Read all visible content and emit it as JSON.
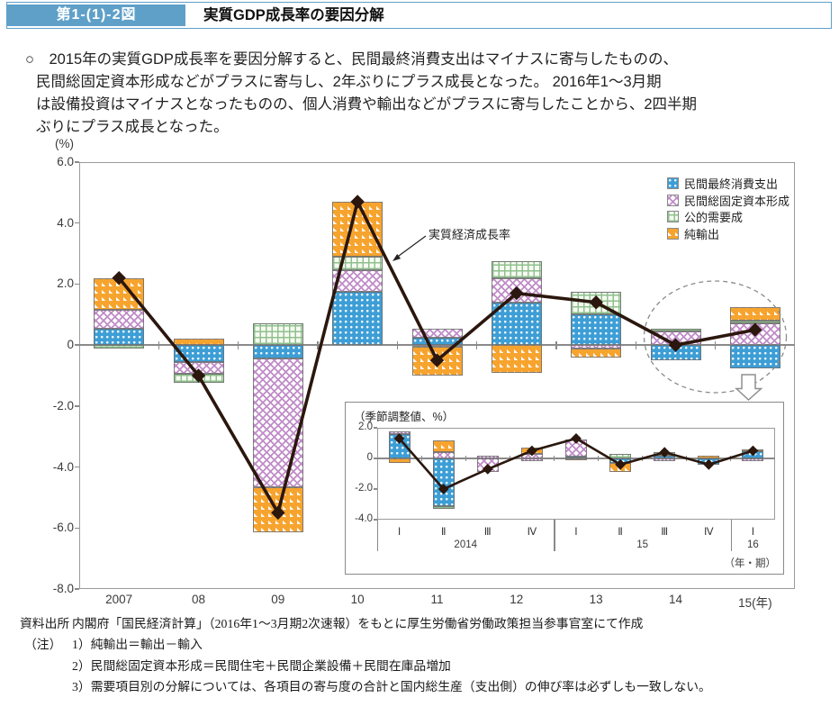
{
  "header": {
    "figure_label": "第1-(1)-2図",
    "title": "実質GDP成長率の要因分解"
  },
  "summary": {
    "lines": [
      "○　2015年の実質GDP成長率を要因分解すると、民間最終消費支出はマイナスに寄与したものの、",
      "民間総固定資本形成などがプラスに寄与し、2年ぶりにプラス成長となった。 2016年1～3月期",
      "は設備投資はマイナスとなったものの、個人消費や輸出などがプラスに寄与したことから、2四半期",
      "ぶりにプラス成長となった。"
    ]
  },
  "colors": {
    "blue": "#3D9ED6",
    "purple": "#C08CC8",
    "green": "#8FC08D",
    "orange": "#F7A42F",
    "line": "#2B170D",
    "header_blue": "#5FA0C9",
    "frame": "#9B9B9B",
    "ellipse": "#8A8A8A",
    "arrow_outline": "#8F8F8F"
  },
  "chart_data": [
    {
      "type": "bar",
      "subtype": "stacked-contribution-bars-with-line",
      "unit_label": "(%)",
      "ylim": [
        -8,
        6
      ],
      "ytick_labels": [
        "6.0",
        "4.0",
        "2.0",
        "0",
        "-2.0",
        "-4.0",
        "-6.0",
        "-8.0"
      ],
      "categories": [
        "2007",
        "08",
        "09",
        "10",
        "11",
        "12",
        "13",
        "14",
        "15(年)"
      ],
      "legend": [
        {
          "series": "blue",
          "label": "民間最終消費支出"
        },
        {
          "series": "purple",
          "label": "民間総固定資本形成"
        },
        {
          "series": "green",
          "label": "公的需要成"
        },
        {
          "series": "orange",
          "label": "純輸出"
        }
      ],
      "bars": [
        [
          [
            "blue",
            0.55
          ],
          [
            "purple",
            0.6
          ],
          [
            "orange",
            1.05
          ],
          [
            "green",
            -0.1
          ]
        ],
        [
          [
            "orange",
            0.2
          ],
          [
            "blue",
            -0.55
          ],
          [
            "purple",
            -0.4
          ],
          [
            "green",
            -0.3
          ]
        ],
        [
          [
            "green",
            0.7
          ],
          [
            "blue",
            -0.45
          ],
          [
            "purple",
            -4.2
          ],
          [
            "orange",
            -1.5
          ]
        ],
        [
          [
            "blue",
            1.75
          ],
          [
            "purple",
            0.7
          ],
          [
            "green",
            0.45
          ],
          [
            "orange",
            1.8
          ]
        ],
        [
          [
            "blue",
            0.25
          ],
          [
            "purple",
            0.3
          ],
          [
            "green",
            -0.05
          ],
          [
            "orange",
            -0.95
          ]
        ],
        [
          [
            "blue",
            1.4
          ],
          [
            "purple",
            0.8
          ],
          [
            "green",
            0.55
          ],
          [
            "orange",
            -0.9
          ]
        ],
        [
          [
            "blue",
            1.0
          ],
          [
            "green",
            0.75
          ],
          [
            "purple",
            -0.1
          ],
          [
            "orange",
            -0.3
          ]
        ],
        [
          [
            "purple",
            0.45
          ],
          [
            "green",
            0.1
          ],
          [
            "blue",
            -0.5
          ]
        ],
        [
          [
            "purple",
            0.7
          ],
          [
            "green",
            0.1
          ],
          [
            "orange",
            0.45
          ],
          [
            "blue",
            -0.75
          ]
        ]
      ],
      "line": {
        "label": "実質経済成長率",
        "values": [
          2.2,
          -1.0,
          -5.5,
          4.7,
          -0.5,
          1.7,
          1.4,
          0.0,
          0.5
        ]
      }
    },
    {
      "type": "bar",
      "subtype": "inset-quarterly-stacked-bars-with-line",
      "title": "（季節調整値、%）",
      "ylim": [
        -4,
        2
      ],
      "ytick_labels": [
        "2.0",
        "0",
        "-2.0",
        "-4.0"
      ],
      "categories": [
        "Ⅰ",
        "Ⅱ",
        "Ⅲ",
        "Ⅳ",
        "Ⅰ",
        "Ⅱ",
        "Ⅲ",
        "Ⅳ",
        "Ⅰ"
      ],
      "groups": [
        {
          "label": "2014",
          "span": 4
        },
        {
          "label": "15",
          "span": 4
        },
        {
          "label": "16",
          "span": 1
        }
      ],
      "axis_note": "（年・期）",
      "bars": [
        [
          [
            "blue",
            1.6
          ],
          [
            "purple",
            0.15
          ],
          [
            "orange",
            -0.3
          ]
        ],
        [
          [
            "purple",
            0.4
          ],
          [
            "orange",
            0.8
          ],
          [
            "blue",
            -3.1
          ],
          [
            "green",
            -0.2
          ]
        ],
        [
          [
            "purple",
            0.2
          ],
          [
            "purple",
            -0.9
          ]
        ],
        [
          [
            "purple",
            0.3
          ],
          [
            "orange",
            0.4
          ],
          [
            "purple",
            -0.2
          ]
        ],
        [
          [
            "blue",
            0.1
          ],
          [
            "purple",
            1.15
          ],
          [
            "orange",
            -0.1
          ]
        ],
        [
          [
            "green",
            0.3
          ],
          [
            "blue",
            -0.3
          ],
          [
            "orange",
            -0.6
          ]
        ],
        [
          [
            "blue",
            0.15
          ],
          [
            "green",
            0.25
          ],
          [
            "purple",
            -0.15
          ]
        ],
        [
          [
            "orange",
            0.15
          ],
          [
            "blue",
            -0.4
          ]
        ],
        [
          [
            "blue",
            0.45
          ],
          [
            "orange",
            0.15
          ],
          [
            "purple",
            -0.15
          ]
        ]
      ],
      "line_values": [
        1.3,
        -2.0,
        -0.7,
        0.5,
        1.3,
        -0.4,
        0.4,
        -0.4,
        0.5
      ]
    }
  ],
  "footer": {
    "source_label": "資料出所",
    "source_text": "内閣府「国民経済計算」（2016年1～3月期2次速報）をもとに厚生労働省労働政策担当参事官室にて作成",
    "note_label": "（注）",
    "notes": [
      "1）純輸出＝輸出－輸入",
      "2）民間総固定資本形成＝民間住宅＋民間企業設備＋民間在庫品増加",
      "3）需要項目別の分解については、各項目の寄与度の合計と国内総生産（支出側）の伸び率は必ずしも一致しない。"
    ]
  }
}
